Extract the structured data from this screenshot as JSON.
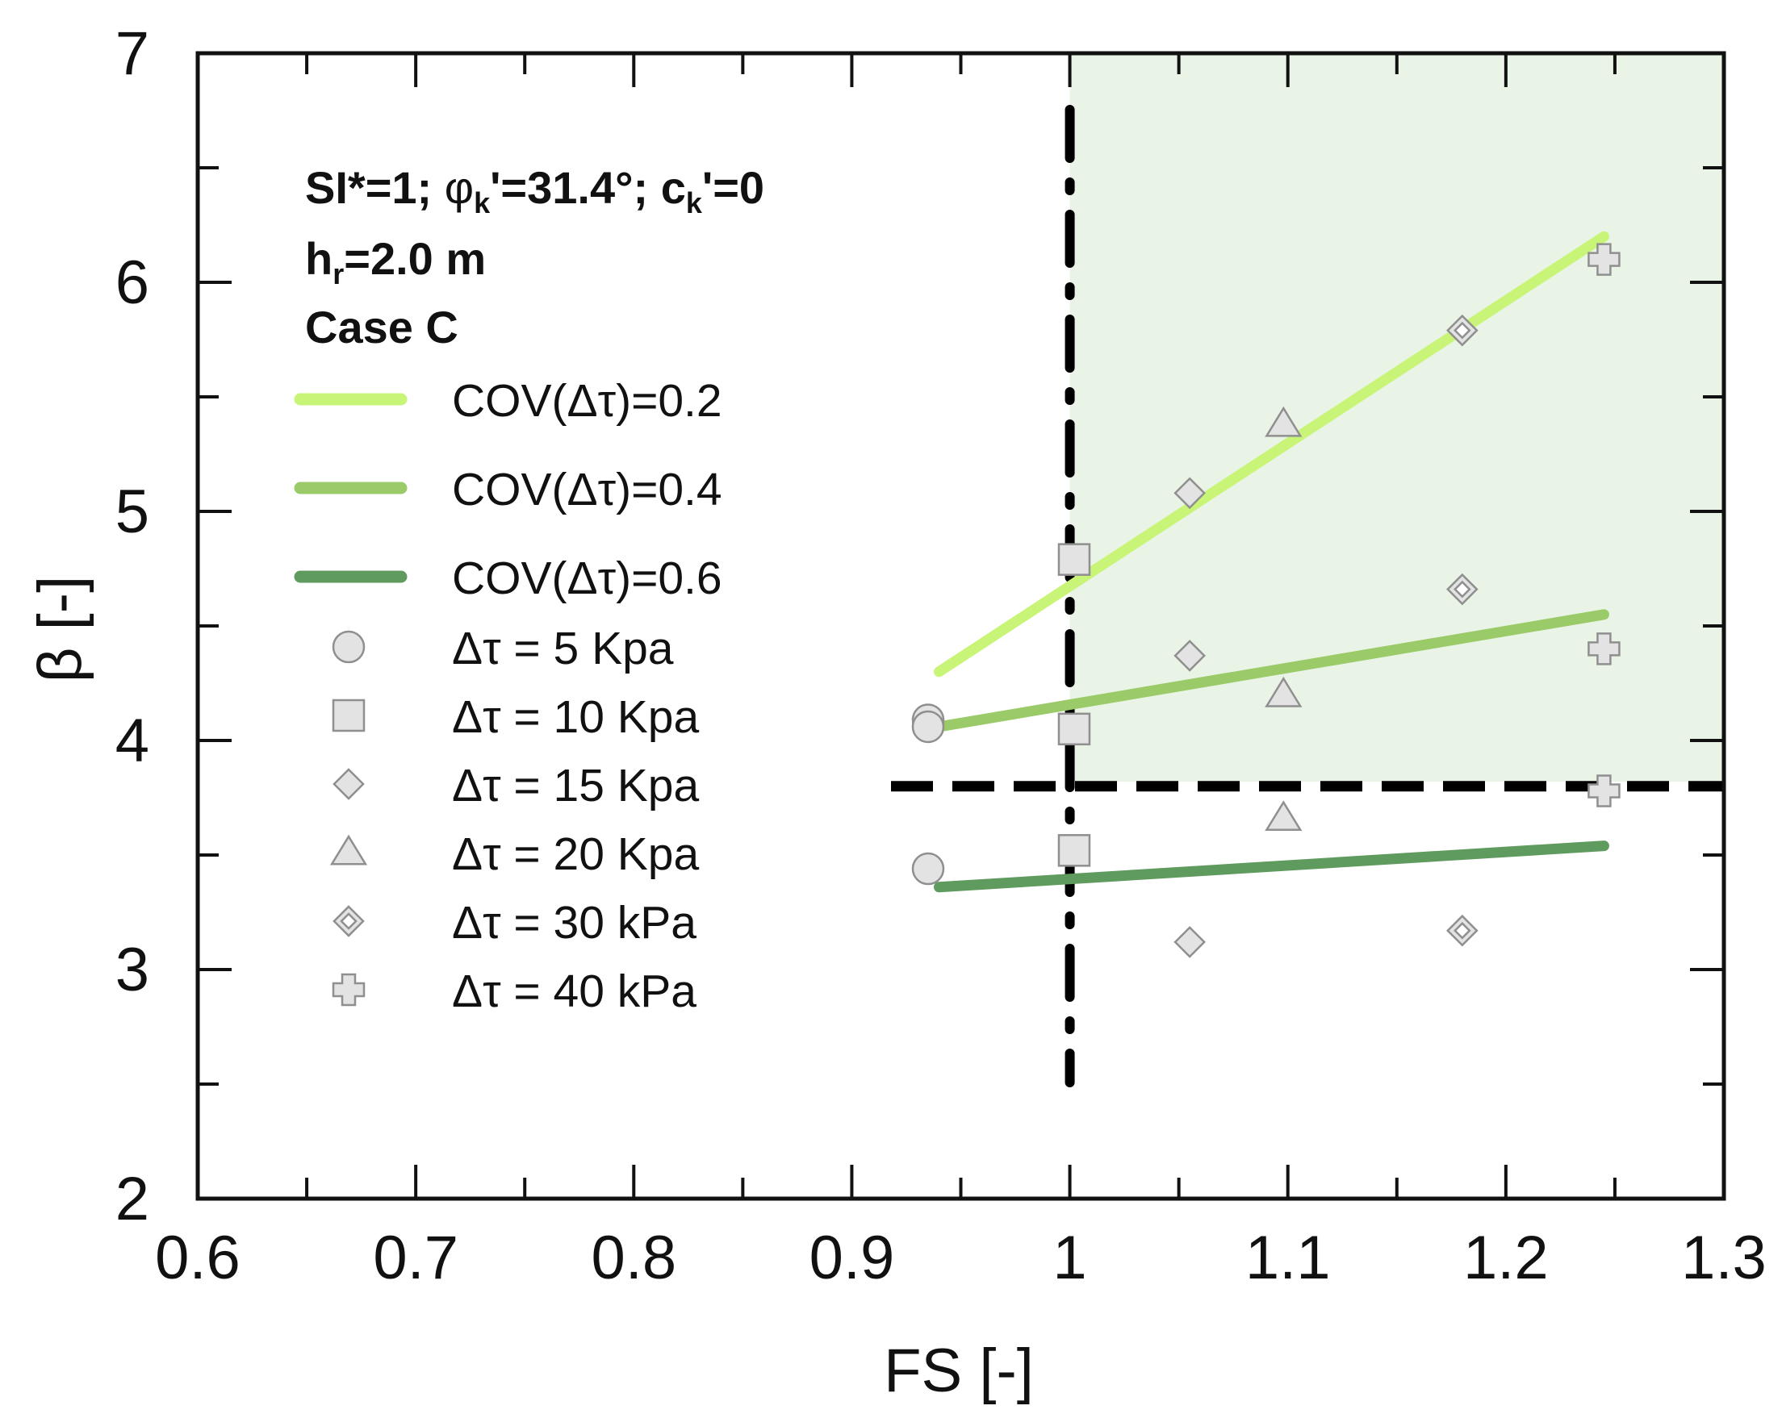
{
  "chart_data": {
    "type": "scatter",
    "title": "",
    "xlabel": "FS [-]",
    "ylabel": "β [-]",
    "xlim": [
      0.6,
      1.3
    ],
    "ylim": [
      2,
      7
    ],
    "x_ticks": [
      "0.6",
      "0.7",
      "0.8",
      "0.9",
      "1",
      "1.1",
      "1.2",
      "1.3"
    ],
    "y_ticks": [
      "2",
      "3",
      "4",
      "5",
      "6",
      "7"
    ],
    "annotation": {
      "line1_a": "SI*=1; ",
      "line1_phi": "φ",
      "line1_phi_sub": "k",
      "line1_b": "'=31.4°; c",
      "line1_c_sub": "k",
      "line1_c": "'=0",
      "line2_h": "h",
      "line2_h_sub": "r",
      "line2_rest": "=2.0 m",
      "line3": "Case C"
    },
    "safe_region": {
      "x_from": 1.0,
      "x_to": 1.3,
      "y_from": 3.82,
      "y_to": 7,
      "color": "#e9f4e6"
    },
    "reference_lines": [
      {
        "name": "beta-target-line",
        "orientation": "horizontal",
        "value": 3.8,
        "style": "dashed"
      },
      {
        "name": "fs-unity-line",
        "orientation": "vertical",
        "value": 1.0,
        "style": "dashdot"
      }
    ],
    "series": [
      {
        "name": "COV(Δτ)=0.2",
        "kind": "line",
        "color": "#c8f577",
        "x": [
          0.94,
          1.245
        ],
        "y": [
          4.3,
          6.2
        ]
      },
      {
        "name": "COV(Δτ)=0.4",
        "kind": "line",
        "color": "#9acb68",
        "x": [
          0.94,
          1.245
        ],
        "y": [
          4.06,
          4.55
        ]
      },
      {
        "name": "COV(Δτ)=0.6",
        "kind": "line",
        "color": "#5f9a5e",
        "x": [
          0.94,
          1.245
        ],
        "y": [
          3.36,
          3.54
        ]
      },
      {
        "name": "Δτ = 5 Kpa",
        "kind": "marker",
        "marker": "circle",
        "x": [
          0.935,
          0.935,
          0.935
        ],
        "y": [
          4.09,
          4.06,
          3.44
        ]
      },
      {
        "name": "Δτ = 10 Kpa",
        "kind": "marker",
        "marker": "square",
        "x": [
          1.002,
          1.002,
          1.002
        ],
        "y": [
          4.79,
          4.05,
          3.52
        ]
      },
      {
        "name": "Δτ = 15 Kpa",
        "kind": "marker",
        "marker": "diamond",
        "x": [
          1.055,
          1.055,
          1.055
        ],
        "y": [
          5.08,
          4.37,
          3.12
        ]
      },
      {
        "name": "Δτ = 20 Kpa",
        "kind": "marker",
        "marker": "triangle",
        "x": [
          1.098,
          1.098,
          1.098
        ],
        "y": [
          5.38,
          4.2,
          3.66
        ]
      },
      {
        "name": "Δτ = 30 kPa",
        "kind": "marker",
        "marker": "diamond-dot",
        "x": [
          1.18,
          1.18,
          1.18
        ],
        "y": [
          5.79,
          4.66,
          3.17
        ]
      },
      {
        "name": "Δτ = 40 kPa",
        "kind": "marker",
        "marker": "plus",
        "x": [
          1.245,
          1.245,
          1.245
        ],
        "y": [
          6.1,
          4.4,
          3.78
        ]
      }
    ]
  }
}
